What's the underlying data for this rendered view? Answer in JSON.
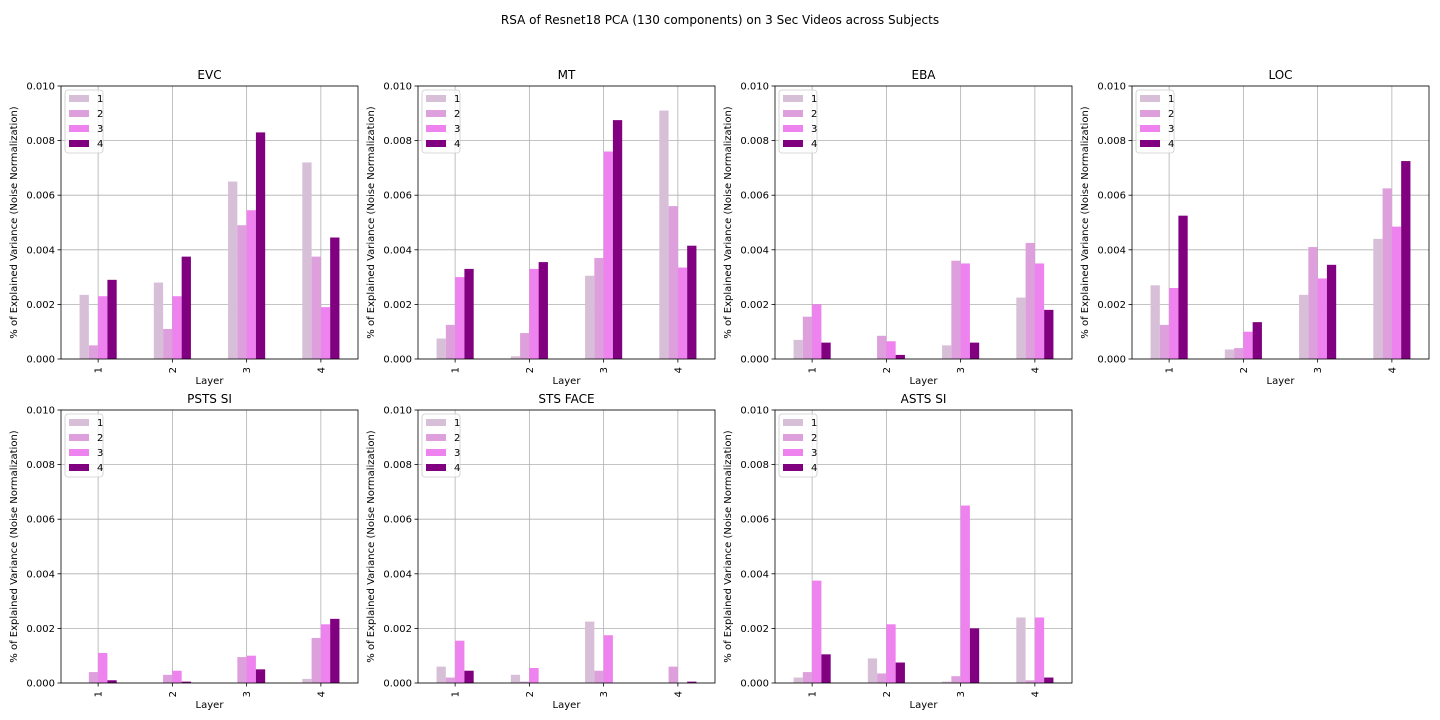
{
  "figure": {
    "title": "RSA of Resnet18 PCA (130 components) on 3 Sec Videos across Subjects"
  },
  "colors": {
    "1": "#d8bfd8",
    "2": "#dda0dd",
    "3": "#ee82ee",
    "4": "#800080",
    "grid": "#b0b0b0"
  },
  "chart_data": [
    {
      "type": "bar",
      "title": "EVC",
      "xlabel": "Layer",
      "ylabel": "% of Explained Variance (Noise Normalization)",
      "categories": [
        "1",
        "2",
        "3",
        "4"
      ],
      "ylim": [
        0,
        0.01
      ],
      "yticks": [
        "0.000",
        "0.002",
        "0.004",
        "0.006",
        "0.008",
        "0.010"
      ],
      "grid": true,
      "legend": "upper-left",
      "series": [
        {
          "name": "1",
          "values": [
            0.00235,
            0.0028,
            0.0065,
            0.0072
          ]
        },
        {
          "name": "2",
          "values": [
            0.0005,
            0.0011,
            0.0049,
            0.00375
          ]
        },
        {
          "name": "3",
          "values": [
            0.0023,
            0.0023,
            0.00545,
            0.0019
          ]
        },
        {
          "name": "4",
          "values": [
            0.0029,
            0.00375,
            0.0083,
            0.00445
          ]
        }
      ]
    },
    {
      "type": "bar",
      "title": "MT",
      "xlabel": "Layer",
      "ylabel": "% of Explained Variance (Noise Normalization)",
      "categories": [
        "1",
        "2",
        "3",
        "4"
      ],
      "ylim": [
        0,
        0.01
      ],
      "yticks": [
        "0.000",
        "0.002",
        "0.004",
        "0.006",
        "0.008",
        "0.010"
      ],
      "grid": true,
      "legend": "upper-left",
      "series": [
        {
          "name": "1",
          "values": [
            0.00075,
            0.0001,
            0.00305,
            0.0091
          ]
        },
        {
          "name": "2",
          "values": [
            0.00125,
            0.00095,
            0.0037,
            0.0056
          ]
        },
        {
          "name": "3",
          "values": [
            0.003,
            0.0033,
            0.0076,
            0.00335
          ]
        },
        {
          "name": "4",
          "values": [
            0.0033,
            0.00355,
            0.00875,
            0.00415
          ]
        }
      ]
    },
    {
      "type": "bar",
      "title": "EBA",
      "xlabel": "Layer",
      "ylabel": "% of Explained Variance (Noise Normalization)",
      "categories": [
        "1",
        "2",
        "3",
        "4"
      ],
      "ylim": [
        0,
        0.01
      ],
      "yticks": [
        "0.000",
        "0.002",
        "0.004",
        "0.006",
        "0.008",
        "0.010"
      ],
      "grid": true,
      "legend": "upper-left",
      "series": [
        {
          "name": "1",
          "values": [
            0.0007,
            0.0,
            0.0005,
            0.00225
          ]
        },
        {
          "name": "2",
          "values": [
            0.00155,
            0.00085,
            0.0036,
            0.00425
          ]
        },
        {
          "name": "3",
          "values": [
            0.002,
            0.00065,
            0.0035,
            0.0035
          ]
        },
        {
          "name": "4",
          "values": [
            0.0006,
            0.00015,
            0.0006,
            0.0018
          ]
        }
      ]
    },
    {
      "type": "bar",
      "title": "LOC",
      "xlabel": "Layer",
      "ylabel": "% of Explained Variance (Noise Normalization)",
      "categories": [
        "1",
        "2",
        "3",
        "4"
      ],
      "ylim": [
        0,
        0.01
      ],
      "yticks": [
        "0.000",
        "0.002",
        "0.004",
        "0.006",
        "0.008",
        "0.010"
      ],
      "grid": true,
      "legend": "upper-left",
      "series": [
        {
          "name": "1",
          "values": [
            0.0027,
            0.00035,
            0.00235,
            0.0044
          ]
        },
        {
          "name": "2",
          "values": [
            0.00125,
            0.0004,
            0.0041,
            0.00625
          ]
        },
        {
          "name": "3",
          "values": [
            0.0026,
            0.001,
            0.00295,
            0.00485
          ]
        },
        {
          "name": "4",
          "values": [
            0.00525,
            0.00135,
            0.00345,
            0.00725
          ]
        }
      ]
    },
    {
      "type": "bar",
      "title": "PSTS SI",
      "xlabel": "Layer",
      "ylabel": "% of Explained Variance (Noise Normalization)",
      "categories": [
        "1",
        "2",
        "3",
        "4"
      ],
      "ylim": [
        0,
        0.01
      ],
      "yticks": [
        "0.000",
        "0.002",
        "0.004",
        "0.006",
        "0.008",
        "0.010"
      ],
      "grid": true,
      "legend": "upper-left",
      "series": [
        {
          "name": "1",
          "values": [
            0.0,
            0.0,
            0.0,
            0.00015
          ]
        },
        {
          "name": "2",
          "values": [
            0.0004,
            0.0003,
            0.00095,
            0.00165
          ]
        },
        {
          "name": "3",
          "values": [
            0.0011,
            0.00045,
            0.001,
            0.00215
          ]
        },
        {
          "name": "4",
          "values": [
            0.0001,
            5e-05,
            0.0005,
            0.00235
          ]
        }
      ]
    },
    {
      "type": "bar",
      "title": "STS FACE",
      "xlabel": "Layer",
      "ylabel": "% of Explained Variance (Noise Normalization)",
      "categories": [
        "1",
        "2",
        "3",
        "4"
      ],
      "ylim": [
        0,
        0.01
      ],
      "yticks": [
        "0.000",
        "0.002",
        "0.004",
        "0.006",
        "0.008",
        "0.010"
      ],
      "grid": true,
      "legend": "upper-left",
      "series": [
        {
          "name": "1",
          "values": [
            0.0006,
            0.0003,
            0.00225,
            0.0
          ]
        },
        {
          "name": "2",
          "values": [
            0.0002,
            5e-05,
            0.00045,
            0.0006
          ]
        },
        {
          "name": "3",
          "values": [
            0.00155,
            0.00055,
            0.00175,
            0.0
          ]
        },
        {
          "name": "4",
          "values": [
            0.00045,
            0.0,
            0.0,
            5e-05
          ]
        }
      ]
    },
    {
      "type": "bar",
      "title": "ASTS SI",
      "xlabel": "Layer",
      "ylabel": "% of Explained Variance (Noise Normalization)",
      "categories": [
        "1",
        "2",
        "3",
        "4"
      ],
      "ylim": [
        0,
        0.01
      ],
      "yticks": [
        "0.000",
        "0.002",
        "0.004",
        "0.006",
        "0.008",
        "0.010"
      ],
      "grid": true,
      "legend": "upper-left",
      "series": [
        {
          "name": "1",
          "values": [
            0.0002,
            0.0009,
            5e-05,
            0.0024
          ]
        },
        {
          "name": "2",
          "values": [
            0.0004,
            0.00035,
            0.00025,
            0.0001
          ]
        },
        {
          "name": "3",
          "values": [
            0.00375,
            0.00215,
            0.0065,
            0.0024
          ]
        },
        {
          "name": "4",
          "values": [
            0.00105,
            0.00075,
            0.002,
            0.0002
          ]
        }
      ]
    }
  ]
}
